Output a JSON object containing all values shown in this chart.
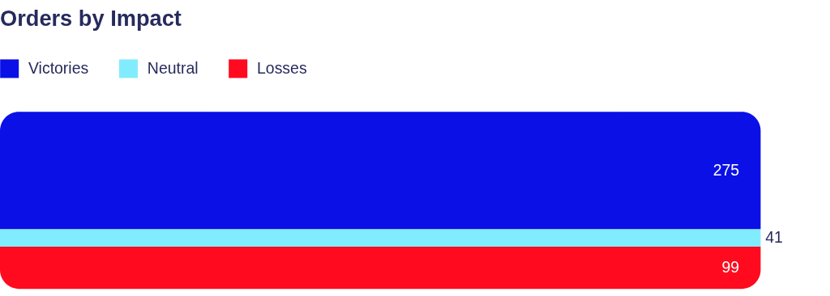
{
  "chart_data": {
    "type": "bar",
    "title": "Orders by Impact",
    "categories": [
      null
    ],
    "stacked": true,
    "data_labels": true,
    "legend": "top left",
    "series": [
      {
        "name": "Losses",
        "color": "#ff0a1e",
        "values": [
          99
        ]
      },
      {
        "name": "Neutral",
        "color": "#82ecff",
        "values": [
          41
        ]
      },
      {
        "name": "Victories",
        "color": "#0a10e6",
        "values": [
          275
        ]
      }
    ]
  }
}
